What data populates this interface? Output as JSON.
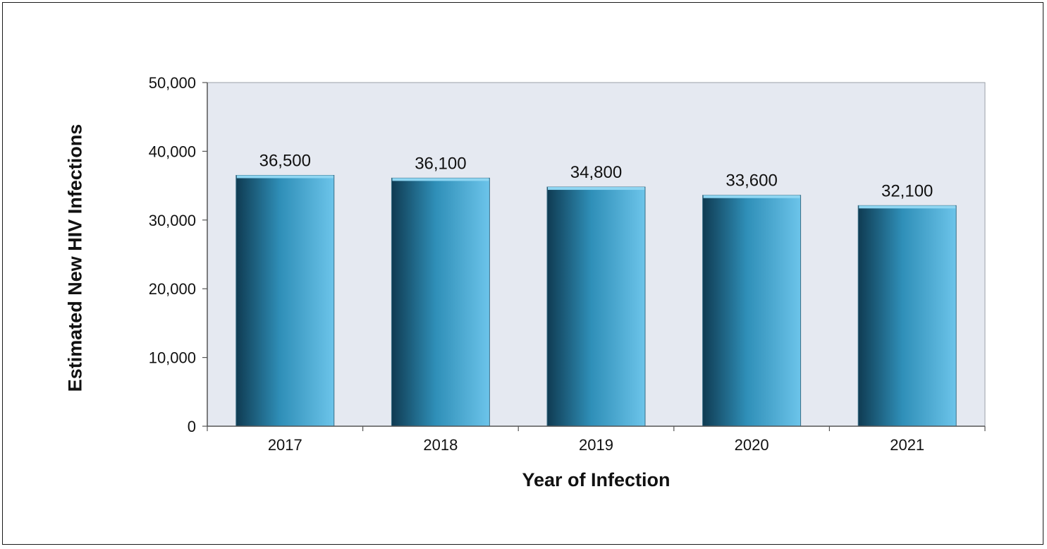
{
  "chart_data": {
    "type": "bar",
    "title": "",
    "xlabel": "Year of Infection",
    "ylabel": "Estimated New HIV Infections",
    "categories": [
      "2017",
      "2018",
      "2019",
      "2020",
      "2021"
    ],
    "values": [
      36500,
      36100,
      34800,
      33600,
      32100
    ],
    "data_labels": [
      "36,500",
      "36,100",
      "34,800",
      "33,600",
      "32,100"
    ],
    "ylim": [
      0,
      50000
    ],
    "yticks": [
      0,
      10000,
      20000,
      30000,
      40000,
      50000
    ],
    "ytick_labels": [
      "0",
      "10,000",
      "20,000",
      "30,000",
      "40,000",
      "50,000"
    ],
    "grid": false,
    "legend": "none",
    "colors": {
      "plot_background": "#e5e9f1",
      "bar_dark": "#0f3b52",
      "bar_mid": "#2f8fb8",
      "bar_light": "#6cc4ea",
      "bar_top": "#8fd6f2",
      "axis": "#555555"
    }
  }
}
